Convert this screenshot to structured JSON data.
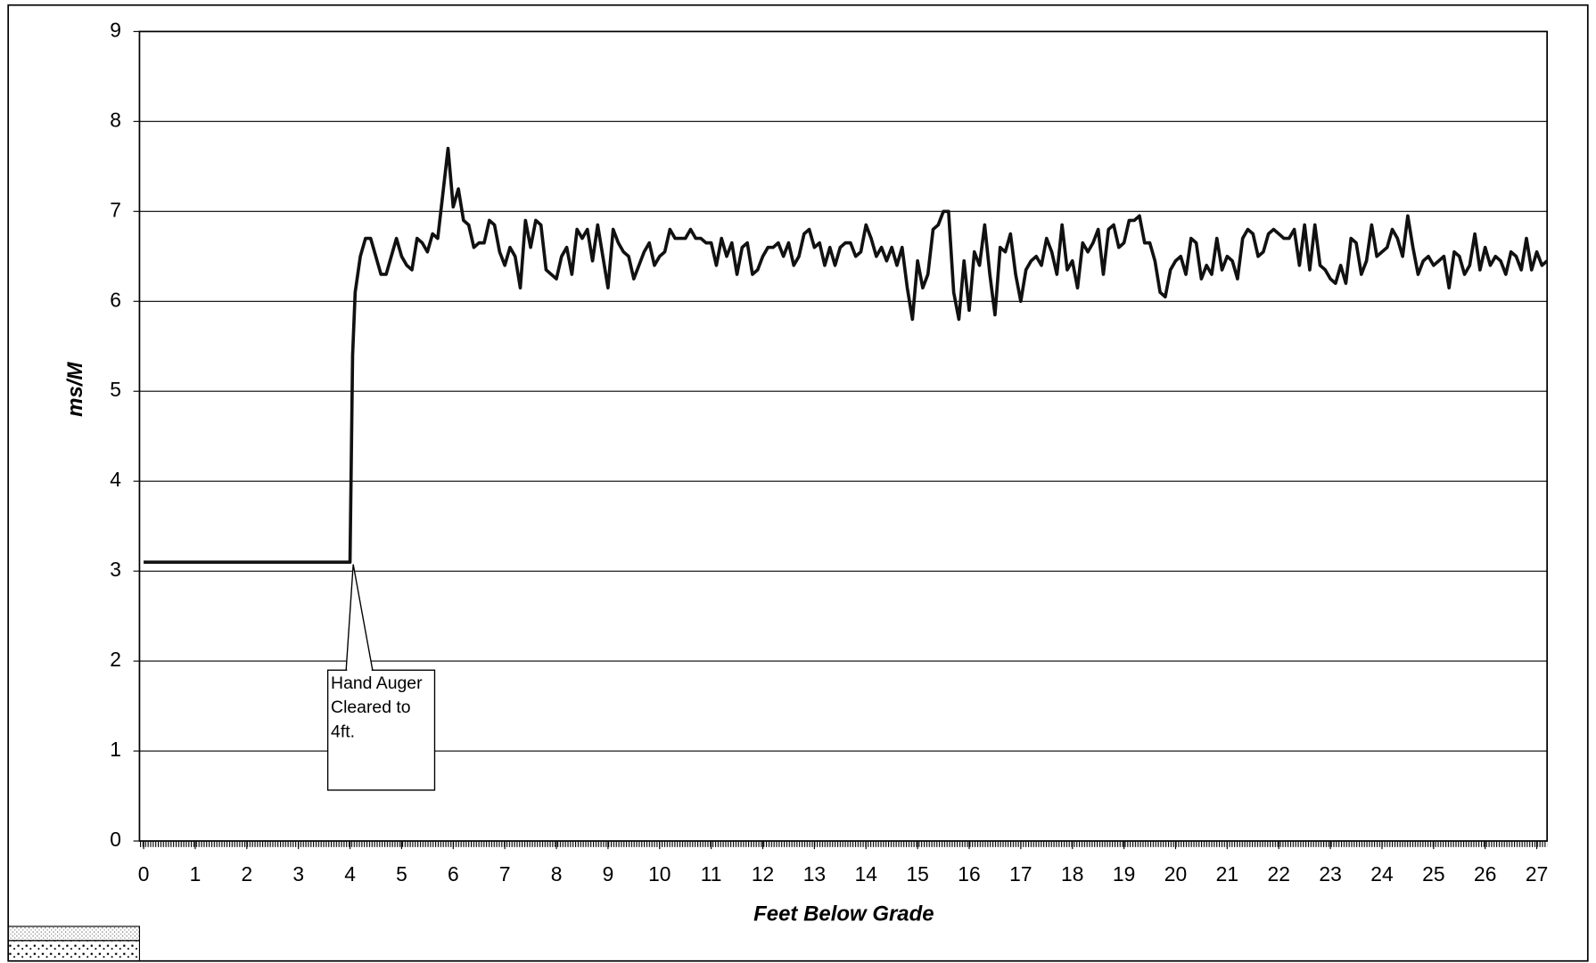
{
  "chart_data": {
    "type": "line",
    "xlabel": "Feet Below Grade",
    "ylabel": "ms/M",
    "annotation": "Hand Auger Cleared to 4ft.",
    "color": "#111111",
    "grid": true,
    "xlim": [
      -0.08,
      27.2
    ],
    "ylim": [
      0,
      9
    ],
    "xticks": [
      0,
      1,
      2,
      3,
      4,
      5,
      6,
      7,
      8,
      9,
      10,
      11,
      12,
      13,
      14,
      15,
      16,
      17,
      18,
      19,
      20,
      21,
      22,
      23,
      24,
      25,
      26,
      27
    ],
    "yticks": [
      0,
      1,
      2,
      3,
      4,
      5,
      6,
      7,
      8,
      9
    ],
    "x": [
      0,
      4,
      4.05,
      4.1,
      4.2,
      4.3,
      4.4,
      4.5,
      4.6,
      4.7,
      4.8,
      4.9,
      5.0,
      5.1,
      5.2,
      5.3,
      5.4,
      5.5,
      5.6,
      5.7,
      5.8,
      5.9,
      6.0,
      6.1,
      6.2,
      6.3,
      6.4,
      6.5,
      6.6,
      6.7,
      6.8,
      6.9,
      7.0,
      7.1,
      7.2,
      7.3,
      7.4,
      7.5,
      7.6,
      7.7,
      7.8,
      7.9,
      8.0,
      8.1,
      8.2,
      8.3,
      8.4,
      8.5,
      8.6,
      8.7,
      8.8,
      8.9,
      9.0,
      9.1,
      9.2,
      9.3,
      9.4,
      9.5,
      9.6,
      9.7,
      9.8,
      9.9,
      10.0,
      10.1,
      10.2,
      10.3,
      10.4,
      10.5,
      10.6,
      10.7,
      10.8,
      10.9,
      11.0,
      11.1,
      11.2,
      11.3,
      11.4,
      11.5,
      11.6,
      11.7,
      11.8,
      11.9,
      12.0,
      12.1,
      12.2,
      12.3,
      12.4,
      12.5,
      12.6,
      12.7,
      12.8,
      12.9,
      13.0,
      13.1,
      13.2,
      13.3,
      13.4,
      13.5,
      13.6,
      13.7,
      13.8,
      13.9,
      14.0,
      14.1,
      14.2,
      14.3,
      14.4,
      14.5,
      14.6,
      14.7,
      14.8,
      14.9,
      15.0,
      15.1,
      15.2,
      15.3,
      15.4,
      15.5,
      15.6,
      15.7,
      15.8,
      15.9,
      16.0,
      16.1,
      16.2,
      16.3,
      16.4,
      16.5,
      16.6,
      16.7,
      16.8,
      16.9,
      17.0,
      17.1,
      17.2,
      17.3,
      17.4,
      17.5,
      17.6,
      17.7,
      17.8,
      17.9,
      18.0,
      18.1,
      18.2,
      18.3,
      18.4,
      18.5,
      18.6,
      18.7,
      18.8,
      18.9,
      19.0,
      19.1,
      19.2,
      19.3,
      19.4,
      19.5,
      19.6,
      19.7,
      19.8,
      19.9,
      20.0,
      20.1,
      20.2,
      20.3,
      20.4,
      20.5,
      20.6,
      20.7,
      20.8,
      20.9,
      21.0,
      21.1,
      21.2,
      21.3,
      21.4,
      21.5,
      21.6,
      21.7,
      21.8,
      21.9,
      22.0,
      22.1,
      22.2,
      22.3,
      22.4,
      22.5,
      22.6,
      22.7,
      22.8,
      22.9,
      23.0,
      23.1,
      23.2,
      23.3,
      23.4,
      23.5,
      23.6,
      23.7,
      23.8,
      23.9,
      24.0,
      24.1,
      24.2,
      24.3,
      24.4,
      24.5,
      24.6,
      24.7,
      24.8,
      24.9,
      25.0,
      25.1,
      25.2,
      25.3,
      25.4,
      25.5,
      25.6,
      25.7,
      25.8,
      25.9,
      26.0,
      26.1,
      26.2,
      26.3,
      26.4,
      26.5,
      26.6,
      26.7,
      26.8,
      26.9,
      27.0,
      27.1,
      27.2
    ],
    "values": [
      3.1,
      3.1,
      5.4,
      6.1,
      6.5,
      6.7,
      6.7,
      6.5,
      6.3,
      6.3,
      6.5,
      6.7,
      6.5,
      6.4,
      6.35,
      6.7,
      6.65,
      6.55,
      6.75,
      6.7,
      7.2,
      7.7,
      7.05,
      7.25,
      6.9,
      6.85,
      6.6,
      6.65,
      6.65,
      6.9,
      6.85,
      6.55,
      6.4,
      6.6,
      6.5,
      6.15,
      6.9,
      6.6,
      6.9,
      6.85,
      6.35,
      6.3,
      6.25,
      6.5,
      6.6,
      6.3,
      6.8,
      6.7,
      6.8,
      6.45,
      6.85,
      6.5,
      6.15,
      6.8,
      6.65,
      6.55,
      6.5,
      6.25,
      6.4,
      6.55,
      6.65,
      6.4,
      6.5,
      6.55,
      6.8,
      6.7,
      6.7,
      6.7,
      6.8,
      6.7,
      6.7,
      6.65,
      6.65,
      6.4,
      6.7,
      6.5,
      6.65,
      6.3,
      6.6,
      6.65,
      6.3,
      6.35,
      6.5,
      6.6,
      6.6,
      6.65,
      6.5,
      6.65,
      6.4,
      6.5,
      6.75,
      6.8,
      6.6,
      6.65,
      6.4,
      6.6,
      6.4,
      6.6,
      6.65,
      6.65,
      6.5,
      6.55,
      6.85,
      6.7,
      6.5,
      6.6,
      6.45,
      6.6,
      6.4,
      6.6,
      6.15,
      5.8,
      6.45,
      6.15,
      6.3,
      6.8,
      6.85,
      7.0,
      7.0,
      6.1,
      5.8,
      6.45,
      5.9,
      6.55,
      6.4,
      6.85,
      6.3,
      5.85,
      6.6,
      6.55,
      6.75,
      6.3,
      6.0,
      6.35,
      6.45,
      6.5,
      6.4,
      6.7,
      6.55,
      6.3,
      6.85,
      6.35,
      6.45,
      6.15,
      6.65,
      6.55,
      6.65,
      6.8,
      6.3,
      6.8,
      6.85,
      6.6,
      6.65,
      6.9,
      6.9,
      6.95,
      6.65,
      6.65,
      6.45,
      6.1,
      6.05,
      6.35,
      6.45,
      6.5,
      6.3,
      6.7,
      6.65,
      6.25,
      6.4,
      6.3,
      6.7,
      6.35,
      6.5,
      6.45,
      6.25,
      6.7,
      6.8,
      6.75,
      6.5,
      6.55,
      6.75,
      6.8,
      6.75,
      6.7,
      6.7,
      6.8,
      6.4,
      6.85,
      6.35,
      6.85,
      6.4,
      6.35,
      6.25,
      6.2,
      6.4,
      6.2,
      6.7,
      6.65,
      6.3,
      6.45,
      6.85,
      6.5,
      6.55,
      6.6,
      6.8,
      6.7,
      6.5,
      6.95,
      6.6,
      6.3,
      6.45,
      6.5,
      6.4,
      6.45,
      6.5,
      6.15,
      6.55,
      6.5,
      6.3,
      6.4,
      6.75,
      6.35,
      6.6,
      6.4,
      6.5,
      6.45,
      6.3,
      6.55,
      6.5,
      6.35,
      6.7,
      6.35,
      6.55,
      6.4,
      6.45
    ]
  }
}
